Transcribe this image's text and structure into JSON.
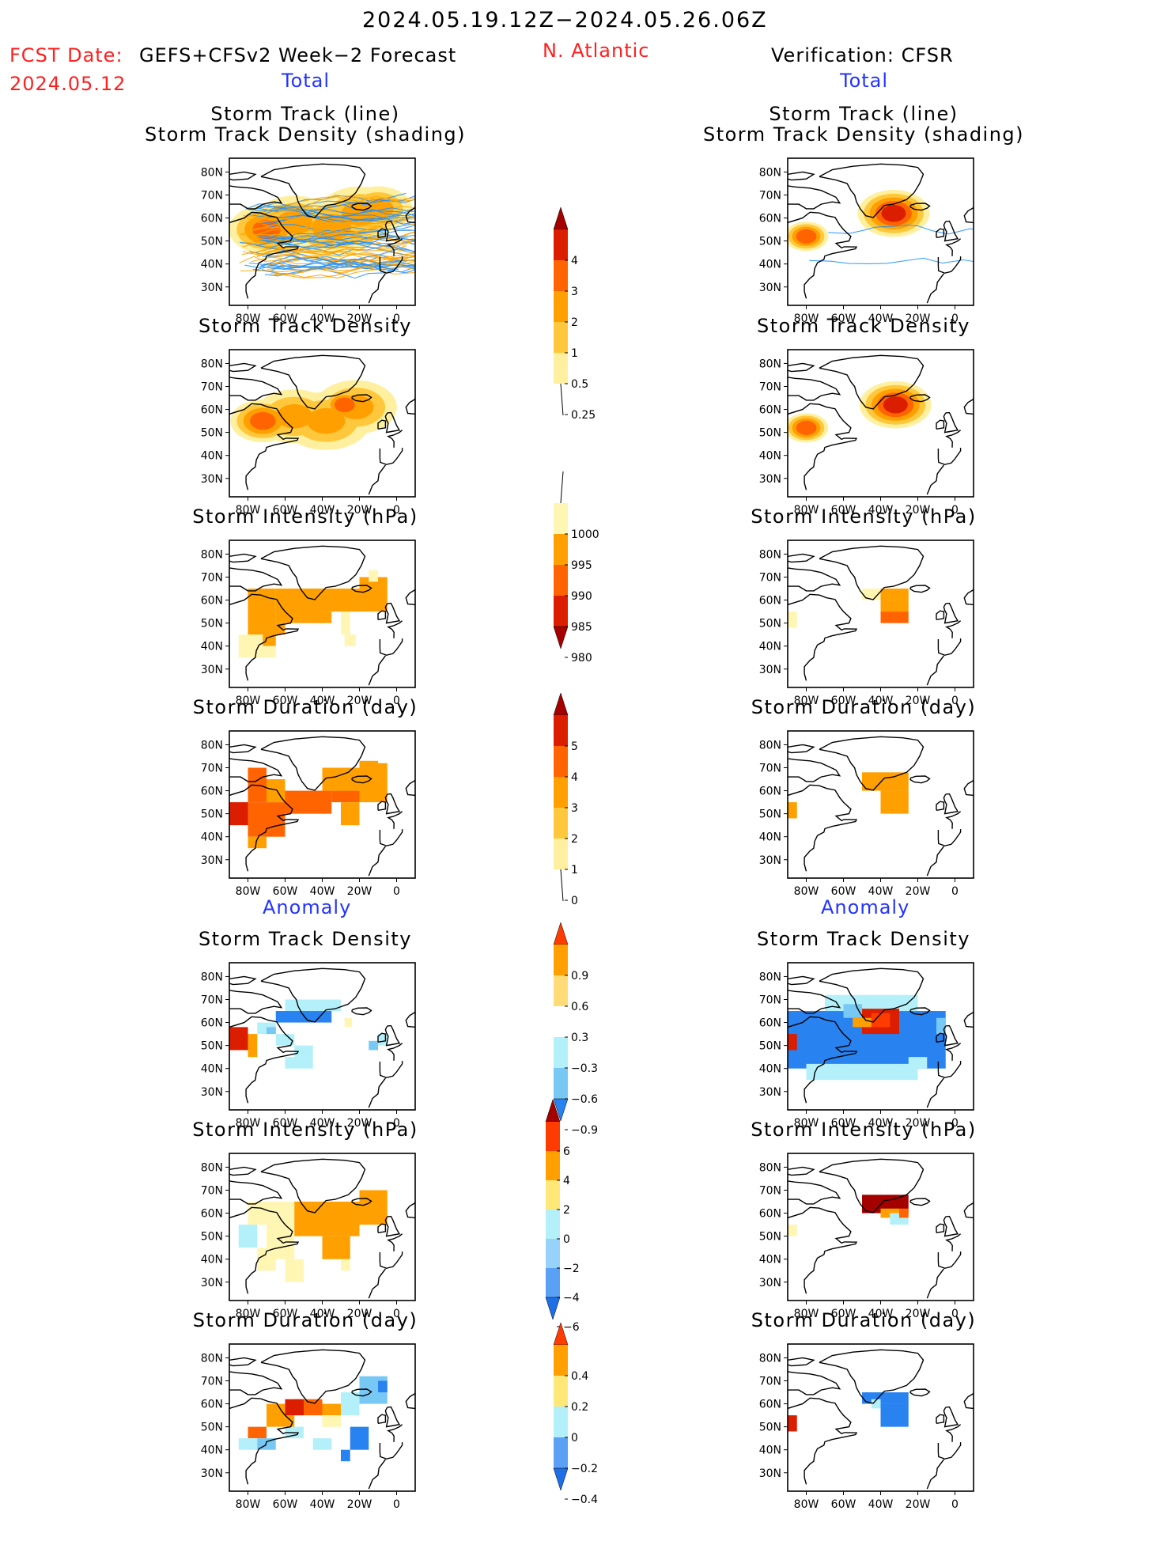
{
  "header": {
    "title": "2024.05.19.12Z−2024.05.26.06Z",
    "fcst_date_label": "FCST Date:",
    "fcst_date": "2024.05.12",
    "model": "GEFS+CFSv2 Week−2 Forecast",
    "region": "N. Atlantic",
    "verification": "Verification: CFSR",
    "left_total": "Total",
    "right_total": "Total",
    "left_anomaly": "Anomaly",
    "right_anomaly": "Anomaly"
  },
  "panel_titles": {
    "track_line": "Storm Track (line)",
    "track_shading": "Storm Track Density (shading)",
    "density": "Storm Track Density",
    "intensity": "Storm Intensity (hPa)",
    "duration": "Storm Duration (day)"
  },
  "map_axes": {
    "lat_ticks": [
      "80N",
      "70N",
      "60N",
      "50N",
      "40N",
      "30N"
    ],
    "lon_ticks": [
      "80W",
      "60W",
      "40W",
      "20W",
      "0"
    ]
  },
  "colorbars": {
    "density_total": {
      "labels": [
        "4",
        "3",
        "2",
        "1",
        "0.5",
        "0.25"
      ],
      "colors": [
        "#a50000",
        "#dc1e00",
        "#ff6400",
        "#ffa000",
        "#ffc83c",
        "#fff0a0"
      ]
    },
    "intensity_total": {
      "labels": [
        "1000",
        "995",
        "990",
        "985",
        "980"
      ],
      "colors": [
        "#fff6b4",
        "#ffa000",
        "#ff6400",
        "#dc1e00",
        "#a50000"
      ]
    },
    "duration_total": {
      "labels": [
        "5",
        "4",
        "3",
        "2",
        "1",
        "0"
      ],
      "colors": [
        "#a50000",
        "#dc1e00",
        "#ff6400",
        "#ffa000",
        "#ffc83c",
        "#fff0a0"
      ]
    },
    "density_anom": {
      "labels": [
        "0.9",
        "0.6",
        "0.3",
        "−0.3",
        "−0.6",
        "−0.9"
      ],
      "colors": [
        "#ff3c00",
        "#ffa000",
        "#ffdc78",
        "#ffffff",
        "#b4f0fa",
        "#78c8f5",
        "#2882f0"
      ]
    },
    "intensity_anom": {
      "labels": [
        "6",
        "4",
        "2",
        "0",
        "−2",
        "−4",
        "−6"
      ],
      "colors": [
        "#a50000",
        "#ff3c00",
        "#ffa000",
        "#ffe878",
        "#b4f0fa",
        "#96d2fa",
        "#5aa0f5",
        "#1e6ee6"
      ]
    },
    "duration_anom": {
      "labels": [
        "0.4",
        "0.2",
        "0",
        "−0.2",
        "−0.4"
      ],
      "colors": [
        "#ff3c00",
        "#ffa000",
        "#ffe878",
        "#b4f0fa",
        "#5aa0f5",
        "#1e6ee6"
      ]
    }
  },
  "fields": {
    "fc_track": [
      {
        "lat": 55,
        "lon": -70,
        "r": 1.8,
        "level": 3
      },
      {
        "lat": 58,
        "lon": -55,
        "r": 2.0,
        "level": 2
      },
      {
        "lat": 56,
        "lon": -35,
        "r": 2.3,
        "level": 2
      },
      {
        "lat": 62,
        "lon": -20,
        "r": 2.0,
        "level": 2
      },
      {
        "lat": 64,
        "lon": -10,
        "r": 1.6,
        "level": 2
      }
    ],
    "fc_density": [
      {
        "lat": 55,
        "lon": -72,
        "r": 1.5,
        "level": 3
      },
      {
        "lat": 57,
        "lon": -55,
        "r": 2.0,
        "level": 2
      },
      {
        "lat": 55,
        "lon": -38,
        "r": 2.2,
        "level": 2
      },
      {
        "lat": 61,
        "lon": -22,
        "r": 2.0,
        "level": 2
      },
      {
        "lat": 62,
        "lon": -28,
        "r": 0.9,
        "level": 3
      }
    ],
    "obs_track": [
      {
        "lat": 62,
        "lon": -33,
        "r": 1.7,
        "level": 4
      },
      {
        "lat": 52,
        "lon": -80,
        "r": 0.9,
        "level": 3
      }
    ],
    "obs_density": [
      {
        "lat": 62,
        "lon": -32,
        "r": 1.7,
        "level": 4
      },
      {
        "lat": 52,
        "lon": -80,
        "r": 0.9,
        "level": 3
      }
    ]
  },
  "tracks_note": "",
  "fc_tracks_colors": [
    "#1e90ff",
    "#ffa500"
  ],
  "obs_tracks_colors": [
    "#1e90ff"
  ]
}
